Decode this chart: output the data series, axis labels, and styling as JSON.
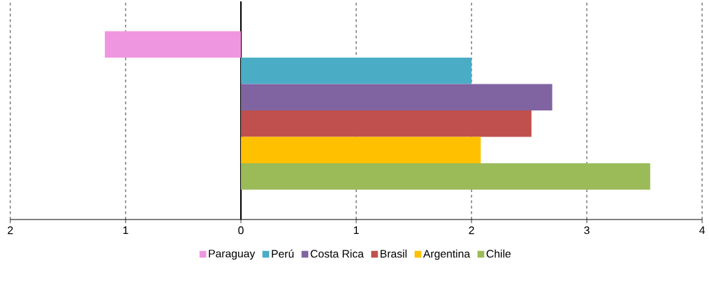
{
  "chart_data": {
    "type": "bar",
    "orientation": "horizontal",
    "categories": [
      null
    ],
    "series": [
      {
        "name": "Paraguay",
        "color": "#ef96e0",
        "values": [
          -1.18
        ]
      },
      {
        "name": "Perú",
        "color": "#4bacc6",
        "values": [
          2.0
        ]
      },
      {
        "name": "Costa Rica",
        "color": "#8064a2",
        "values": [
          2.7
        ]
      },
      {
        "name": "Brasil",
        "color": "#c0504d",
        "values": [
          2.52
        ]
      },
      {
        "name": "Argentina",
        "color": "#ffc000",
        "values": [
          2.08
        ]
      },
      {
        "name": "Chile",
        "color": "#9bbb59",
        "values": [
          3.55
        ]
      }
    ],
    "xlim": [
      -2,
      4
    ],
    "xticks": [
      {
        "value": -2,
        "label": "2"
      },
      {
        "value": -1,
        "label": "1"
      },
      0,
      1,
      2,
      3,
      4
    ],
    "grid": "x",
    "legend": "bottom"
  }
}
